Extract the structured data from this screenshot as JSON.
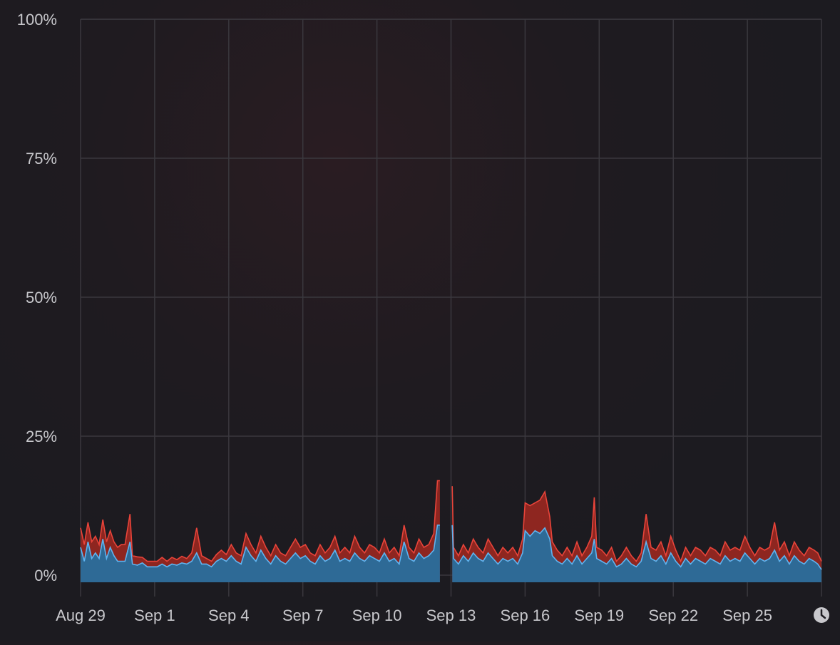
{
  "colors": {
    "cpu_user_fill": "#2e6a96",
    "cpu_user_line": "#5fb4f0",
    "cpu_system_fill": "#8e2620",
    "cpu_system_line": "#e8443a",
    "grid": "#3a383e",
    "axis_text": "#c8c8cc"
  },
  "chart_data": {
    "type": "area",
    "title": "",
    "xlabel": "",
    "ylabel": "",
    "ylim": [
      0,
      100
    ],
    "y_tick_labels": [
      "0%",
      "25%",
      "50%",
      "75%",
      "100%"
    ],
    "y_tick_values": [
      0,
      25,
      50,
      75,
      100
    ],
    "x_tick_labels": [
      "Aug 29",
      "Sep 1",
      "Sep 4",
      "Sep 7",
      "Sep 10",
      "Sep 13",
      "Sep 16",
      "Sep 19",
      "Sep 22",
      "Sep 25"
    ],
    "x_tick_days": [
      0,
      3,
      6,
      9,
      12,
      15,
      18,
      21,
      24,
      27
    ],
    "x_range_days": [
      0,
      30
    ],
    "grid": true,
    "time_icon": "clock-icon",
    "gap_days": [
      14.55,
      15.05
    ],
    "series": [
      {
        "stacked": true,
        "points": [
          [
            0,
            5
          ],
          [
            0.15,
            2.5
          ],
          [
            0.3,
            6
          ],
          [
            0.45,
            3
          ],
          [
            0.6,
            4
          ],
          [
            0.75,
            3
          ],
          [
            0.9,
            6.5
          ],
          [
            1.05,
            3
          ],
          [
            1.2,
            5
          ],
          [
            1.35,
            3.5
          ],
          [
            1.5,
            2.5
          ],
          [
            1.65,
            2.5
          ],
          [
            1.8,
            2.5
          ],
          [
            2.0,
            6
          ],
          [
            2.1,
            2
          ],
          [
            2.3,
            1.8
          ],
          [
            2.5,
            2.2
          ],
          [
            2.7,
            1.5
          ],
          [
            2.9,
            1.5
          ],
          [
            3.1,
            1.5
          ],
          [
            3.3,
            2
          ],
          [
            3.5,
            1.5
          ],
          [
            3.7,
            2
          ],
          [
            3.9,
            1.8
          ],
          [
            4.1,
            2.2
          ],
          [
            4.3,
            2
          ],
          [
            4.5,
            2.5
          ],
          [
            4.7,
            4
          ],
          [
            4.9,
            2
          ],
          [
            5.1,
            2
          ],
          [
            5.3,
            1.5
          ],
          [
            5.5,
            2.5
          ],
          [
            5.7,
            3
          ],
          [
            5.9,
            2.5
          ],
          [
            6.1,
            3.5
          ],
          [
            6.3,
            2.5
          ],
          [
            6.5,
            2
          ],
          [
            6.7,
            5
          ],
          [
            6.9,
            3.5
          ],
          [
            7.1,
            2.5
          ],
          [
            7.3,
            4.5
          ],
          [
            7.5,
            3
          ],
          [
            7.7,
            2
          ],
          [
            7.9,
            3.5
          ],
          [
            8.1,
            2.5
          ],
          [
            8.3,
            2
          ],
          [
            8.5,
            3
          ],
          [
            8.7,
            4
          ],
          [
            8.9,
            3
          ],
          [
            9.1,
            3.5
          ],
          [
            9.3,
            2.5
          ],
          [
            9.5,
            2
          ],
          [
            9.7,
            3.5
          ],
          [
            9.9,
            2.5
          ],
          [
            10.1,
            3
          ],
          [
            10.3,
            4.5
          ],
          [
            10.5,
            2.5
          ],
          [
            10.7,
            3
          ],
          [
            10.9,
            2.5
          ],
          [
            11.1,
            4
          ],
          [
            11.3,
            3
          ],
          [
            11.5,
            2.5
          ],
          [
            11.7,
            3.5
          ],
          [
            11.9,
            3
          ],
          [
            12.1,
            2.5
          ],
          [
            12.3,
            4
          ],
          [
            12.5,
            2.5
          ],
          [
            12.7,
            3
          ],
          [
            12.9,
            2
          ],
          [
            13.1,
            6
          ],
          [
            13.3,
            3
          ],
          [
            13.5,
            2.5
          ],
          [
            13.7,
            4
          ],
          [
            13.9,
            3
          ],
          [
            14.1,
            3.5
          ],
          [
            14.3,
            4.5
          ],
          [
            14.45,
            9
          ],
          [
            14.55,
            9
          ],
          [
            15.05,
            9
          ],
          [
            15.1,
            3
          ],
          [
            15.3,
            2
          ],
          [
            15.5,
            3.5
          ],
          [
            15.7,
            2.5
          ],
          [
            15.9,
            4
          ],
          [
            16.1,
            3
          ],
          [
            16.3,
            2.5
          ],
          [
            16.5,
            4
          ],
          [
            16.7,
            3
          ],
          [
            16.9,
            2
          ],
          [
            17.1,
            3
          ],
          [
            17.3,
            2.5
          ],
          [
            17.5,
            3
          ],
          [
            17.7,
            2
          ],
          [
            17.9,
            4
          ],
          [
            18.0,
            8
          ],
          [
            18.2,
            7
          ],
          [
            18.4,
            8
          ],
          [
            18.6,
            7.5
          ],
          [
            18.8,
            8.5
          ],
          [
            19.0,
            6.5
          ],
          [
            19.1,
            3.5
          ],
          [
            19.3,
            2.5
          ],
          [
            19.5,
            2
          ],
          [
            19.7,
            3
          ],
          [
            19.9,
            2
          ],
          [
            20.1,
            3.5
          ],
          [
            20.3,
            2
          ],
          [
            20.5,
            3
          ],
          [
            20.7,
            4
          ],
          [
            20.8,
            6.5
          ],
          [
            20.9,
            3
          ],
          [
            21.1,
            2.5
          ],
          [
            21.3,
            2
          ],
          [
            21.5,
            3
          ],
          [
            21.7,
            1.5
          ],
          [
            21.9,
            2
          ],
          [
            22.1,
            3
          ],
          [
            22.3,
            2
          ],
          [
            22.5,
            1.5
          ],
          [
            22.7,
            2.5
          ],
          [
            22.9,
            6
          ],
          [
            23.1,
            3
          ],
          [
            23.3,
            2.5
          ],
          [
            23.5,
            3.5
          ],
          [
            23.7,
            2
          ],
          [
            23.9,
            4
          ],
          [
            24.1,
            2.5
          ],
          [
            24.3,
            1.5
          ],
          [
            24.5,
            3
          ],
          [
            24.7,
            2
          ],
          [
            24.9,
            3
          ],
          [
            25.1,
            2.5
          ],
          [
            25.3,
            2
          ],
          [
            25.5,
            3
          ],
          [
            25.7,
            2.5
          ],
          [
            25.9,
            2
          ],
          [
            26.1,
            3.5
          ],
          [
            26.3,
            2.5
          ],
          [
            26.5,
            3
          ],
          [
            26.7,
            2.5
          ],
          [
            26.9,
            4
          ],
          [
            27.1,
            3
          ],
          [
            27.3,
            2
          ],
          [
            27.5,
            3
          ],
          [
            27.7,
            2.5
          ],
          [
            27.9,
            3
          ],
          [
            28.1,
            4.5
          ],
          [
            28.3,
            2.5
          ],
          [
            28.5,
            3.5
          ],
          [
            28.7,
            2
          ],
          [
            28.9,
            3.5
          ],
          [
            29.1,
            2.5
          ],
          [
            29.3,
            2
          ],
          [
            29.5,
            3
          ],
          [
            29.7,
            2.5
          ],
          [
            29.85,
            2
          ],
          [
            30,
            1
          ]
        ]
      },
      {
        "stacked": true,
        "points": [
          [
            0,
            3.5
          ],
          [
            0.15,
            3
          ],
          [
            0.3,
            3.5
          ],
          [
            0.45,
            3
          ],
          [
            0.6,
            3
          ],
          [
            0.75,
            2.5
          ],
          [
            0.9,
            3.5
          ],
          [
            1.05,
            3
          ],
          [
            1.2,
            3
          ],
          [
            1.35,
            2.5
          ],
          [
            1.5,
            2.5
          ],
          [
            1.65,
            3
          ],
          [
            1.8,
            3
          ],
          [
            2.0,
            5
          ],
          [
            2.1,
            1.5
          ],
          [
            2.3,
            1.5
          ],
          [
            2.5,
            1
          ],
          [
            2.7,
            1
          ],
          [
            2.9,
            1
          ],
          [
            3.1,
            1
          ],
          [
            3.3,
            1.2
          ],
          [
            3.5,
            1
          ],
          [
            3.7,
            1.2
          ],
          [
            3.9,
            1
          ],
          [
            4.1,
            1.2
          ],
          [
            4.3,
            1
          ],
          [
            4.5,
            1.5
          ],
          [
            4.7,
            4.5
          ],
          [
            4.9,
            1.5
          ],
          [
            5.1,
            1
          ],
          [
            5.3,
            1
          ],
          [
            5.5,
            1.2
          ],
          [
            5.7,
            1.5
          ],
          [
            5.9,
            1.2
          ],
          [
            6.1,
            2
          ],
          [
            6.3,
            1.5
          ],
          [
            6.5,
            1.5
          ],
          [
            6.7,
            2.5
          ],
          [
            6.9,
            2
          ],
          [
            7.1,
            1.5
          ],
          [
            7.3,
            2.5
          ],
          [
            7.5,
            2
          ],
          [
            7.7,
            1.5
          ],
          [
            7.9,
            2
          ],
          [
            8.1,
            1.5
          ],
          [
            8.3,
            1.5
          ],
          [
            8.5,
            2
          ],
          [
            8.7,
            2.5
          ],
          [
            8.9,
            2
          ],
          [
            9.1,
            2
          ],
          [
            9.3,
            1.5
          ],
          [
            9.5,
            1.5
          ],
          [
            9.7,
            2
          ],
          [
            9.9,
            1.5
          ],
          [
            10.1,
            2
          ],
          [
            10.3,
            2.5
          ],
          [
            10.5,
            1.5
          ],
          [
            10.7,
            2
          ],
          [
            10.9,
            1.5
          ],
          [
            11.1,
            3
          ],
          [
            11.3,
            2
          ],
          [
            11.5,
            1.5
          ],
          [
            11.7,
            2
          ],
          [
            11.9,
            2
          ],
          [
            12.1,
            1.5
          ],
          [
            12.3,
            2.5
          ],
          [
            12.5,
            1.5
          ],
          [
            12.7,
            2
          ],
          [
            12.9,
            1.5
          ],
          [
            13.1,
            3
          ],
          [
            13.3,
            2
          ],
          [
            13.5,
            1.5
          ],
          [
            13.7,
            2.5
          ],
          [
            13.9,
            2
          ],
          [
            14.1,
            2
          ],
          [
            14.3,
            3
          ],
          [
            14.45,
            8
          ],
          [
            14.55,
            8
          ],
          [
            15.05,
            7
          ],
          [
            15.1,
            2
          ],
          [
            15.3,
            1.5
          ],
          [
            15.5,
            2
          ],
          [
            15.7,
            1.5
          ],
          [
            15.9,
            2.5
          ],
          [
            16.1,
            2
          ],
          [
            16.3,
            1.5
          ],
          [
            16.5,
            2.5
          ],
          [
            16.7,
            2
          ],
          [
            16.9,
            1.5
          ],
          [
            17.1,
            2
          ],
          [
            17.3,
            1.5
          ],
          [
            17.5,
            2
          ],
          [
            17.7,
            1.5
          ],
          [
            17.9,
            2.5
          ],
          [
            18.0,
            5
          ],
          [
            18.2,
            5.5
          ],
          [
            18.4,
            5
          ],
          [
            18.6,
            6
          ],
          [
            18.8,
            6.5
          ],
          [
            19.0,
            4
          ],
          [
            19.1,
            2.5
          ],
          [
            19.3,
            2
          ],
          [
            19.5,
            1.5
          ],
          [
            19.7,
            2
          ],
          [
            19.9,
            1.5
          ],
          [
            20.1,
            2.5
          ],
          [
            20.3,
            1.5
          ],
          [
            20.5,
            2
          ],
          [
            20.7,
            3
          ],
          [
            20.8,
            7.5
          ],
          [
            20.9,
            2
          ],
          [
            21.1,
            2
          ],
          [
            21.3,
            1.5
          ],
          [
            21.5,
            2
          ],
          [
            21.7,
            1
          ],
          [
            21.9,
            1.5
          ],
          [
            22.1,
            2
          ],
          [
            22.3,
            1.5
          ],
          [
            22.5,
            1
          ],
          [
            22.7,
            1.5
          ],
          [
            22.9,
            5
          ],
          [
            23.1,
            2
          ],
          [
            23.3,
            2
          ],
          [
            23.5,
            2.5
          ],
          [
            23.7,
            1.5
          ],
          [
            23.9,
            3
          ],
          [
            24.1,
            2
          ],
          [
            24.3,
            1
          ],
          [
            24.5,
            2
          ],
          [
            24.7,
            1.5
          ],
          [
            24.9,
            2
          ],
          [
            25.1,
            2
          ],
          [
            25.3,
            1.5
          ],
          [
            25.5,
            2
          ],
          [
            25.7,
            2
          ],
          [
            25.9,
            1.5
          ],
          [
            26.1,
            2.5
          ],
          [
            26.3,
            2
          ],
          [
            26.5,
            2
          ],
          [
            26.7,
            2
          ],
          [
            26.9,
            3
          ],
          [
            27.1,
            2
          ],
          [
            27.3,
            1.5
          ],
          [
            27.5,
            2
          ],
          [
            27.7,
            2
          ],
          [
            27.9,
            2
          ],
          [
            28.1,
            5
          ],
          [
            28.3,
            2
          ],
          [
            28.5,
            2.5
          ],
          [
            28.7,
            1.5
          ],
          [
            28.9,
            2.5
          ],
          [
            29.1,
            2
          ],
          [
            29.3,
            1.5
          ],
          [
            29.5,
            2
          ],
          [
            29.7,
            2
          ],
          [
            29.85,
            2
          ],
          [
            30,
            1.5
          ]
        ]
      }
    ]
  }
}
